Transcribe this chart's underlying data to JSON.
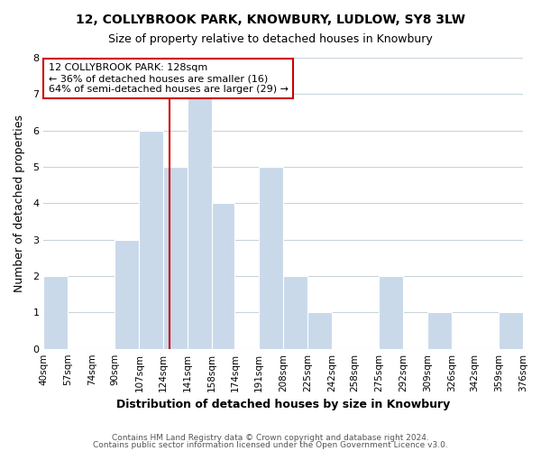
{
  "title": "12, COLLYBROOK PARK, KNOWBURY, LUDLOW, SY8 3LW",
  "subtitle": "Size of property relative to detached houses in Knowbury",
  "xlabel": "Distribution of detached houses by size in Knowbury",
  "ylabel": "Number of detached properties",
  "bin_edges": [
    40,
    57,
    74,
    90,
    107,
    124,
    141,
    158,
    174,
    191,
    208,
    225,
    242,
    258,
    275,
    292,
    309,
    326,
    342,
    359,
    376
  ],
  "counts": [
    2,
    0,
    0,
    3,
    6,
    5,
    7,
    4,
    0,
    5,
    2,
    1,
    0,
    0,
    2,
    0,
    1,
    0,
    0,
    1
  ],
  "bar_color": "#c9d9ea",
  "property_line_x": 128,
  "property_line_color": "#cc0000",
  "annotation_text": "12 COLLYBROOK PARK: 128sqm\n← 36% of detached houses are smaller (16)\n64% of semi-detached houses are larger (29) →",
  "annotation_box_edgecolor": "#cc0000",
  "annotation_box_facecolor": "#ffffff",
  "ylim": [
    0,
    8
  ],
  "yticks": [
    0,
    1,
    2,
    3,
    4,
    5,
    6,
    7,
    8
  ],
  "tick_labels": [
    "40sqm",
    "57sqm",
    "74sqm",
    "90sqm",
    "107sqm",
    "124sqm",
    "141sqm",
    "158sqm",
    "174sqm",
    "191sqm",
    "208sqm",
    "225sqm",
    "242sqm",
    "258sqm",
    "275sqm",
    "292sqm",
    "309sqm",
    "326sqm",
    "342sqm",
    "359sqm",
    "376sqm"
  ],
  "footer1": "Contains HM Land Registry data © Crown copyright and database right 2024.",
  "footer2": "Contains public sector information licensed under the Open Government Licence v3.0.",
  "grid_color": "#c8d4dc",
  "bg_color": "#ffffff"
}
